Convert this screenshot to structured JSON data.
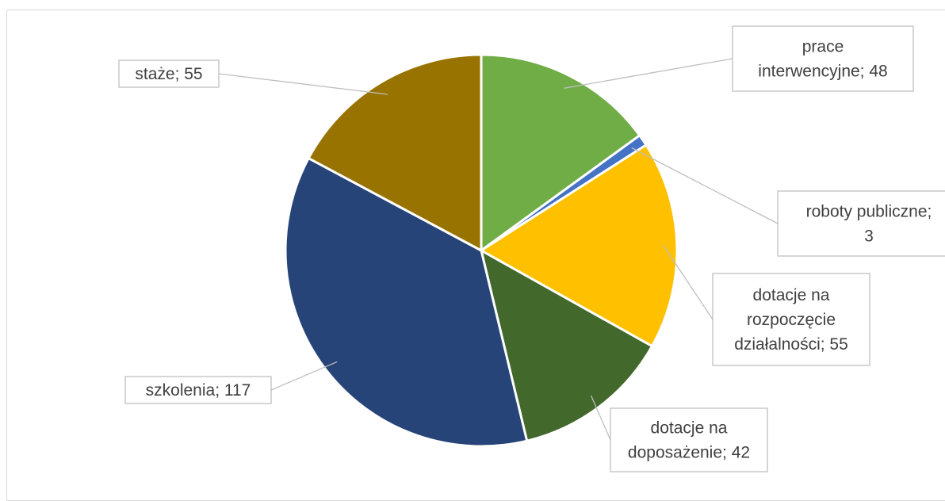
{
  "chart_data": {
    "type": "pie",
    "title": "",
    "slices": [
      {
        "label": "prace interwencyjne",
        "value": 48,
        "color": "#70ad47",
        "lines": [
          "prace",
          "interwencyjne; 48"
        ]
      },
      {
        "label": "roboty publiczne",
        "value": 3,
        "color": "#4472c4",
        "lines": [
          "roboty publiczne;",
          "3"
        ]
      },
      {
        "label": "dotacje na rozpoczęcie działalności",
        "value": 55,
        "color": "#ffc000",
        "lines": [
          "dotacje na",
          "rozpoczęcie",
          "działalności; 55"
        ]
      },
      {
        "label": "dotacje na doposażenie",
        "value": 42,
        "color": "#43682b",
        "lines": [
          "dotacje na",
          "doposażenie; 42"
        ]
      },
      {
        "label": "szkolenia",
        "value": 117,
        "color": "#264478",
        "lines": [
          "szkolenia; 117"
        ]
      },
      {
        "label": "staże",
        "value": 55,
        "color": "#997300",
        "lines": [
          "staże; 55"
        ]
      }
    ],
    "legend": "none",
    "data_labels": "outside with leader lines"
  }
}
